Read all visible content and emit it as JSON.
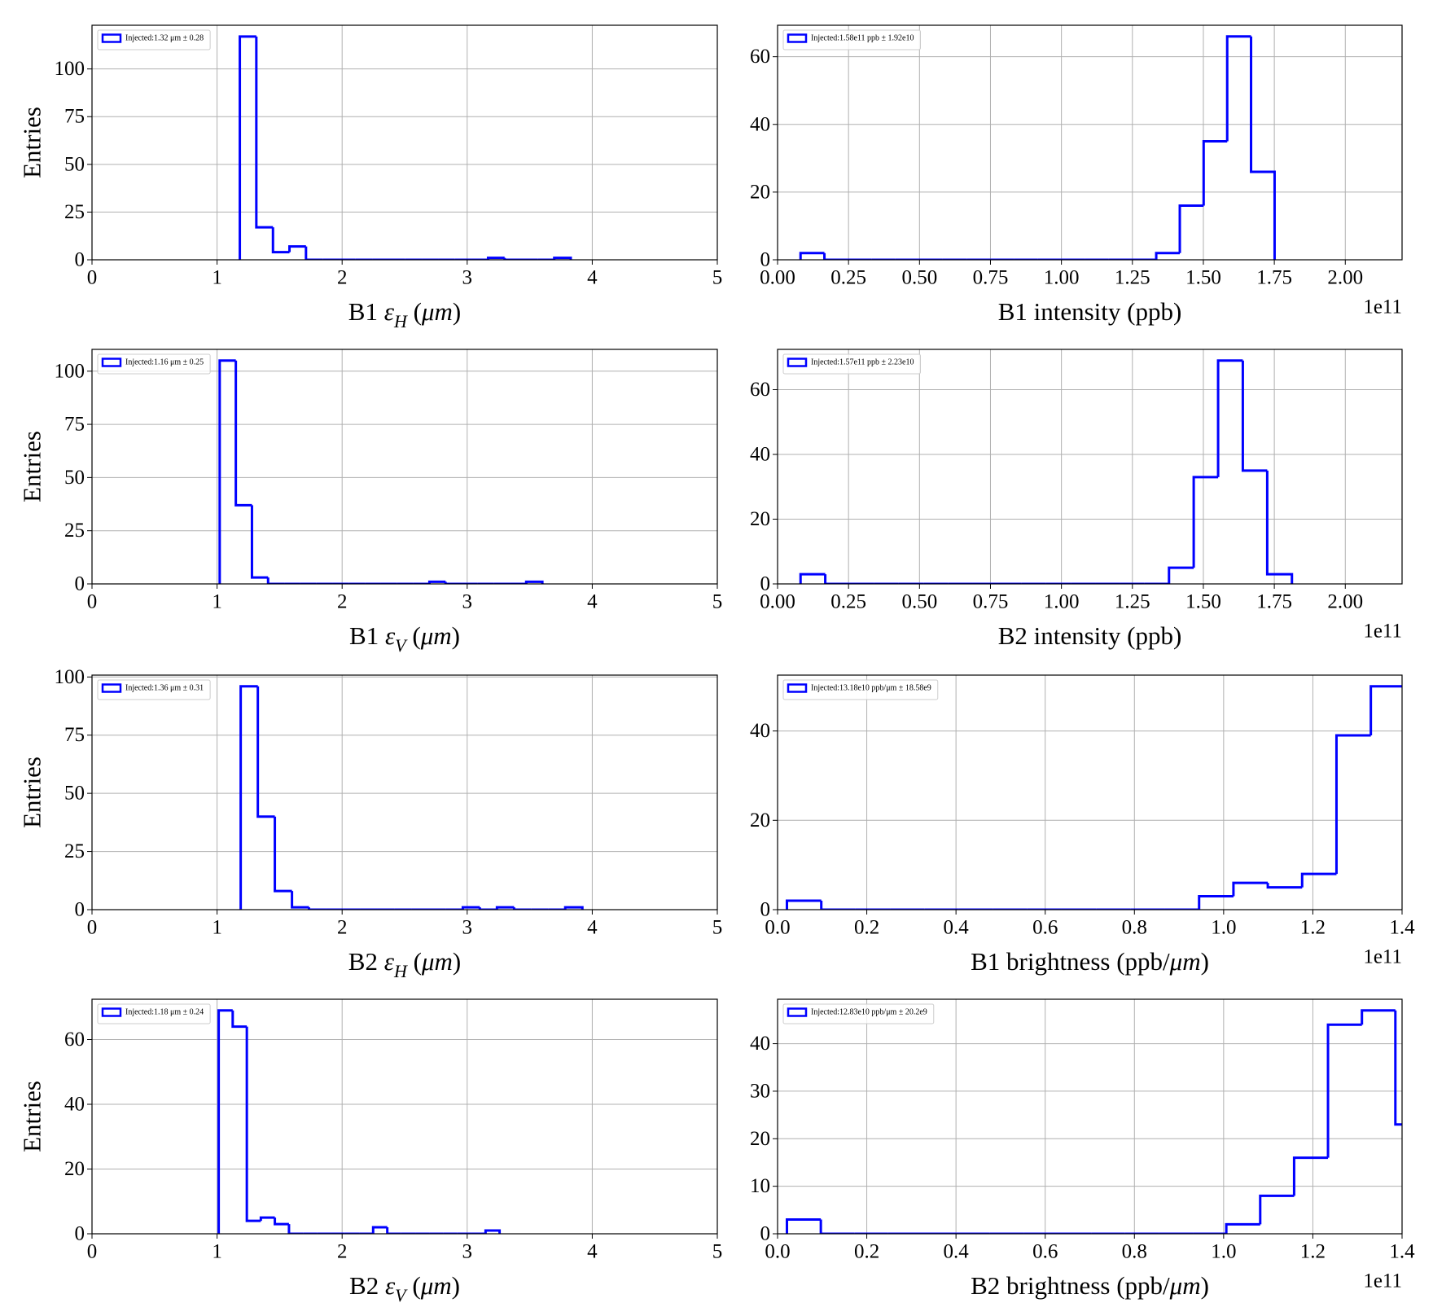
{
  "chart_data": [
    {
      "type": "histogram",
      "xlabel": [
        {
          "text": "B1 "
        },
        {
          "text": "ε",
          "italic": true
        },
        {
          "text": "H",
          "italic": true,
          "sub": true
        },
        {
          "text": " ("
        },
        {
          "text": "μm",
          "italic": true
        },
        {
          "text": ")"
        }
      ],
      "ylabel": "Entries",
      "bins": [
        1.182,
        1.314,
        1.447,
        1.579,
        1.711,
        1.844,
        1.976,
        2.108,
        2.24,
        2.373,
        2.505,
        2.637,
        2.77,
        2.902,
        3.034,
        3.167,
        3.299,
        3.431,
        3.563,
        3.696,
        3.828
      ],
      "series": [
        {
          "name": "Injected:1.32 μm ± 0.28",
          "color": "#0000ff",
          "values": [
            117,
            17,
            4,
            7,
            0,
            0,
            0,
            0,
            0,
            0,
            0,
            0,
            0,
            0,
            0,
            1,
            0,
            0,
            0,
            1
          ]
        }
      ],
      "xlim": [
        0,
        5
      ],
      "xticks": [
        0,
        1,
        2,
        3,
        4,
        5
      ],
      "ylim": [
        0,
        122.9
      ],
      "yticks": [
        0,
        25,
        50,
        75,
        100
      ],
      "grid": true,
      "legend": "upper left"
    },
    {
      "type": "histogram",
      "xlabel": [
        {
          "text": "B1 intensity (ppb)"
        }
      ],
      "offset": "1e11",
      "bins": [
        0.081,
        0.165,
        0.248,
        0.332,
        0.415,
        0.499,
        0.582,
        0.666,
        0.749,
        0.833,
        0.916,
        1.0,
        1.083,
        1.167,
        1.25,
        1.334,
        1.417,
        1.501,
        1.584,
        1.668,
        1.751
      ],
      "series": [
        {
          "name": "Injected:1.58e11 ppb ± 1.92e10",
          "color": "#0000ff",
          "values": [
            2,
            0,
            0,
            0,
            0,
            0,
            0,
            0,
            0,
            0,
            0,
            0,
            0,
            0,
            0,
            2,
            16,
            35,
            66,
            26
          ]
        }
      ],
      "xlim": [
        0,
        2.2
      ],
      "xticks": [
        {
          "value": 0,
          "label": "0.00"
        },
        0.25,
        {
          "value": 0.5,
          "label": "0.50"
        },
        0.75,
        {
          "value": 1,
          "label": "1.00"
        },
        1.25,
        {
          "value": 1.5,
          "label": "1.50"
        },
        1.75,
        {
          "value": 2,
          "label": "2.00"
        }
      ],
      "ylim": [
        0,
        69.3
      ],
      "yticks": [
        0,
        20,
        40,
        60
      ],
      "grid": true,
      "legend": "upper left"
    },
    {
      "type": "histogram",
      "xlabel": [
        {
          "text": "B1 "
        },
        {
          "text": "ε",
          "italic": true
        },
        {
          "text": "V",
          "italic": true,
          "sub": true
        },
        {
          "text": " ("
        },
        {
          "text": "μm",
          "italic": true
        },
        {
          "text": ")"
        }
      ],
      "ylabel": "Entries",
      "bins": [
        1.021,
        1.15,
        1.279,
        1.408,
        1.537,
        1.666,
        1.795,
        1.924,
        2.053,
        2.182,
        2.311,
        2.44,
        2.569,
        2.698,
        2.827,
        2.956,
        3.085,
        3.214,
        3.343,
        3.472,
        3.601
      ],
      "series": [
        {
          "name": "Injected:1.16 μm ± 0.25",
          "color": "#0000ff",
          "values": [
            105,
            37,
            3,
            0,
            0,
            0,
            0,
            0,
            0,
            0,
            0,
            0,
            0,
            1,
            0,
            0,
            0,
            0,
            0,
            1
          ]
        }
      ],
      "xlim": [
        0,
        5
      ],
      "xticks": [
        0,
        1,
        2,
        3,
        4,
        5
      ],
      "ylim": [
        0,
        110.25
      ],
      "yticks": [
        0,
        25,
        50,
        75,
        100
      ],
      "grid": true,
      "legend": "upper left"
    },
    {
      "type": "histogram",
      "xlabel": [
        {
          "text": "B2 intensity (ppb)"
        }
      ],
      "offset": "1e11",
      "bins": [
        0.081,
        0.168,
        0.254,
        0.341,
        0.427,
        0.514,
        0.6,
        0.687,
        0.773,
        0.86,
        0.946,
        1.033,
        1.12,
        1.206,
        1.293,
        1.379,
        1.466,
        1.552,
        1.639,
        1.725,
        1.812
      ],
      "series": [
        {
          "name": "Injected:1.57e11 ppb ± 2.23e10",
          "color": "#0000ff",
          "values": [
            3,
            0,
            0,
            0,
            0,
            0,
            0,
            0,
            0,
            0,
            0,
            0,
            0,
            0,
            0,
            5,
            33,
            69,
            35,
            3
          ]
        }
      ],
      "xlim": [
        0,
        2.2
      ],
      "xticks": [
        {
          "value": 0,
          "label": "0.00"
        },
        0.25,
        {
          "value": 0.5,
          "label": "0.50"
        },
        0.75,
        {
          "value": 1,
          "label": "1.00"
        },
        1.25,
        {
          "value": 1.5,
          "label": "1.50"
        },
        1.75,
        {
          "value": 2,
          "label": "2.00"
        }
      ],
      "ylim": [
        0,
        72.45
      ],
      "yticks": [
        0,
        20,
        40,
        60
      ],
      "grid": true,
      "legend": "upper left"
    },
    {
      "type": "histogram",
      "xlabel": [
        {
          "text": "B2 "
        },
        {
          "text": "ε",
          "italic": true
        },
        {
          "text": "H",
          "italic": true,
          "sub": true
        },
        {
          "text": " ("
        },
        {
          "text": "μm",
          "italic": true
        },
        {
          "text": ")"
        }
      ],
      "ylabel": "Entries",
      "bins": [
        1.189,
        1.326,
        1.462,
        1.599,
        1.735,
        1.872,
        2.009,
        2.145,
        2.282,
        2.418,
        2.555,
        2.692,
        2.828,
        2.965,
        3.101,
        3.238,
        3.375,
        3.511,
        3.648,
        3.784,
        3.921
      ],
      "series": [
        {
          "name": "Injected:1.36 μm ± 0.31",
          "color": "#0000ff",
          "values": [
            96,
            40,
            8,
            1,
            0,
            0,
            0,
            0,
            0,
            0,
            0,
            0,
            0,
            1,
            0,
            1,
            0,
            0,
            0,
            1
          ]
        }
      ],
      "xlim": [
        0,
        5
      ],
      "xticks": [
        0,
        1,
        2,
        3,
        4,
        5
      ],
      "ylim": [
        0,
        100.8
      ],
      "yticks": [
        0,
        25,
        50,
        75,
        100
      ],
      "grid": true,
      "legend": "upper left"
    },
    {
      "type": "histogram",
      "xlabel": [
        {
          "text": "B1 brightness (ppb/"
        },
        {
          "text": "μm",
          "italic": true
        },
        {
          "text": ")"
        }
      ],
      "offset": "1e11",
      "bins": [
        0.021,
        0.098,
        0.175,
        0.252,
        0.329,
        0.406,
        0.483,
        0.56,
        0.637,
        0.714,
        0.791,
        0.868,
        0.945,
        1.022,
        1.099,
        1.176,
        1.253,
        1.33,
        1.407
      ],
      "series": [
        {
          "name": "Injected:13.18e10 ppb/μm ± 18.58e9",
          "color": "#0000ff",
          "values": [
            2,
            0,
            0,
            0,
            0,
            0,
            0,
            0,
            0,
            0,
            0,
            0,
            3,
            6,
            5,
            8,
            39,
            50
          ]
        }
      ],
      "xlim": [
        0,
        1.4
      ],
      "xticks": [
        {
          "value": 0,
          "label": "0.0"
        },
        0.2,
        0.4,
        0.6,
        0.8,
        {
          "value": 1,
          "label": "1.0"
        },
        1.2,
        1.4
      ],
      "ylim": [
        0,
        52.5
      ],
      "yticks": [
        0,
        20,
        40
      ],
      "grid": true,
      "legend": "upper left"
    },
    {
      "type": "histogram",
      "xlabel": [
        {
          "text": "B2 "
        },
        {
          "text": "ε",
          "italic": true
        },
        {
          "text": "V",
          "italic": true,
          "sub": true
        },
        {
          "text": " ("
        },
        {
          "text": "μm",
          "italic": true
        },
        {
          "text": ")"
        }
      ],
      "ylabel": "Entries",
      "bins": [
        1.013,
        1.125,
        1.238,
        1.35,
        1.462,
        1.575,
        1.687,
        1.799,
        1.911,
        2.024,
        2.136,
        2.248,
        2.361,
        2.473,
        2.585,
        2.698,
        2.81,
        2.922,
        3.034,
        3.147,
        3.259
      ],
      "series": [
        {
          "name": "Injected:1.18 μm ± 0.24",
          "color": "#0000ff",
          "values": [
            69,
            64,
            4,
            5,
            3,
            0,
            0,
            0,
            0,
            0,
            0,
            2,
            0,
            0,
            0,
            0,
            0,
            0,
            0,
            1
          ]
        }
      ],
      "xlim": [
        0,
        5
      ],
      "xticks": [
        0,
        1,
        2,
        3,
        4,
        5
      ],
      "ylim": [
        0,
        72.45
      ],
      "yticks": [
        0,
        20,
        40,
        60
      ],
      "grid": true,
      "legend": "upper left"
    },
    {
      "type": "histogram",
      "xlabel": [
        {
          "text": "B2 brightness (ppb/"
        },
        {
          "text": "μm",
          "italic": true
        },
        {
          "text": ")"
        }
      ],
      "offset": "1e11",
      "bins": [
        0.021,
        0.097,
        0.173,
        0.248,
        0.324,
        0.4,
        0.476,
        0.552,
        0.627,
        0.703,
        0.779,
        0.855,
        0.931,
        1.006,
        1.082,
        1.158,
        1.234,
        1.31,
        1.385,
        1.461
      ],
      "series": [
        {
          "name": "Injected:12.83e10 ppb/μm ± 20.2e9",
          "color": "#0000ff",
          "values": [
            3,
            0,
            0,
            0,
            0,
            0,
            0,
            0,
            0,
            0,
            0,
            0,
            0,
            2,
            8,
            16,
            44,
            47,
            23
          ]
        }
      ],
      "xlim": [
        0,
        1.4
      ],
      "xticks": [
        {
          "value": 0,
          "label": "0.0"
        },
        0.2,
        0.4,
        0.6,
        0.8,
        {
          "value": 1,
          "label": "1.0"
        },
        1.2,
        1.4
      ],
      "ylim": [
        0,
        49.35
      ],
      "yticks": [
        0,
        10,
        20,
        30,
        40
      ],
      "grid": true,
      "legend": "upper left"
    }
  ]
}
